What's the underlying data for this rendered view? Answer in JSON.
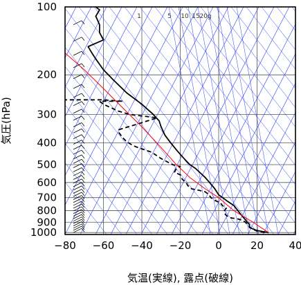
{
  "chart_data": {
    "type": "line",
    "title": "",
    "xlabel": "気温(実線), 露点(破線)",
    "ylabel": "気圧(hPa)",
    "xlim": [
      -80,
      40
    ],
    "ylim": [
      1020,
      100
    ],
    "y_scale": "log",
    "x_ticks": [
      "−80",
      "−60",
      "−40",
      "−20",
      "0",
      "20",
      "40"
    ],
    "x_tick_values": [
      -80,
      -60,
      -40,
      -20,
      0,
      20,
      40
    ],
    "y_ticks": [
      "100",
      "200",
      "300",
      "400",
      "500",
      "600",
      "700",
      "800",
      "900",
      "1000"
    ],
    "y_tick_values": [
      100,
      200,
      300,
      400,
      500,
      600,
      700,
      800,
      900,
      1000
    ],
    "mixing_ratio_labels": [
      "1",
      "5",
      "10",
      "15",
      "20g"
    ],
    "series": [
      {
        "style": "solid",
        "color": "#000000",
        "points": [
          [
            26,
            1000
          ],
          [
            20,
            980
          ],
          [
            16,
            950
          ],
          [
            16,
            920
          ],
          [
            15,
            900
          ],
          [
            14,
            880
          ],
          [
            13,
            860
          ],
          [
            12,
            840
          ],
          [
            10,
            800
          ],
          [
            8,
            760
          ],
          [
            6,
            740
          ],
          [
            4,
            720
          ],
          [
            2,
            700
          ],
          [
            0,
            680
          ],
          [
            -2,
            640
          ],
          [
            -4,
            610
          ],
          [
            -7,
            570
          ],
          [
            -10,
            540
          ],
          [
            -12,
            520
          ],
          [
            -15,
            500
          ],
          [
            -17,
            480
          ],
          [
            -20,
            450
          ],
          [
            -22,
            430
          ],
          [
            -25,
            400
          ],
          [
            -28,
            370
          ],
          [
            -30,
            340
          ],
          [
            -31,
            320
          ],
          [
            -34,
            300
          ],
          [
            -40,
            270
          ],
          [
            -48,
            240
          ],
          [
            -55,
            210
          ],
          [
            -60,
            190
          ],
          [
            -64,
            170
          ],
          [
            -66,
            160
          ],
          [
            -68,
            150
          ],
          [
            -60,
            140
          ],
          [
            -62,
            130
          ],
          [
            -62,
            120
          ],
          [
            -64,
            110
          ],
          [
            -62,
            103
          ],
          [
            -64,
            100
          ]
        ]
      },
      {
        "style": "dashed",
        "color": "#000000",
        "points": [
          [
            24,
            1000
          ],
          [
            20,
            985
          ],
          [
            17,
            960
          ],
          [
            16,
            940
          ],
          [
            15,
            925
          ],
          [
            14,
            900
          ],
          [
            12,
            880
          ],
          [
            10,
            870
          ],
          [
            6,
            860
          ],
          [
            4,
            840
          ],
          [
            3,
            820
          ],
          [
            3,
            800
          ],
          [
            4,
            780
          ],
          [
            2,
            760
          ],
          [
            1,
            740
          ],
          [
            -2,
            720
          ],
          [
            -4,
            700
          ],
          [
            -5,
            680
          ],
          [
            -7,
            660
          ],
          [
            -10,
            650
          ],
          [
            -14,
            640
          ],
          [
            -16,
            620
          ],
          [
            -17,
            600
          ],
          [
            -19,
            580
          ],
          [
            -20,
            555
          ],
          [
            -23,
            540
          ],
          [
            -22,
            520
          ],
          [
            -20,
            510
          ],
          [
            -24,
            500
          ],
          [
            -26,
            490
          ],
          [
            -30,
            470
          ],
          [
            -35,
            440
          ],
          [
            -42,
            420
          ],
          [
            -45,
            410
          ],
          [
            -48,
            395
          ],
          [
            -50,
            380
          ],
          [
            -52,
            360
          ],
          [
            -52,
            350
          ],
          [
            -42,
            330
          ],
          [
            -32,
            310
          ],
          [
            -46,
            300
          ],
          [
            -52,
            290
          ],
          [
            -56,
            280
          ],
          [
            -60,
            270
          ],
          [
            -62,
            262
          ],
          [
            -55,
            262
          ],
          [
            -50,
            262
          ],
          [
            -60,
            258
          ],
          [
            -80,
            258
          ]
        ]
      },
      {
        "style": "solid",
        "color": "#ff0000",
        "points": [
          [
            26,
            1000
          ],
          [
            22,
            950
          ],
          [
            18,
            900
          ],
          [
            13,
            850
          ],
          [
            8,
            800
          ],
          [
            4,
            750
          ],
          [
            0,
            700
          ],
          [
            -7,
            640
          ],
          [
            -15,
            570
          ],
          [
            -22,
            500
          ],
          [
            -30,
            420
          ],
          [
            -40,
            340
          ],
          [
            -50,
            280
          ],
          [
            -60,
            230
          ],
          [
            -70,
            190
          ],
          [
            -80,
            160
          ]
        ]
      }
    ]
  }
}
